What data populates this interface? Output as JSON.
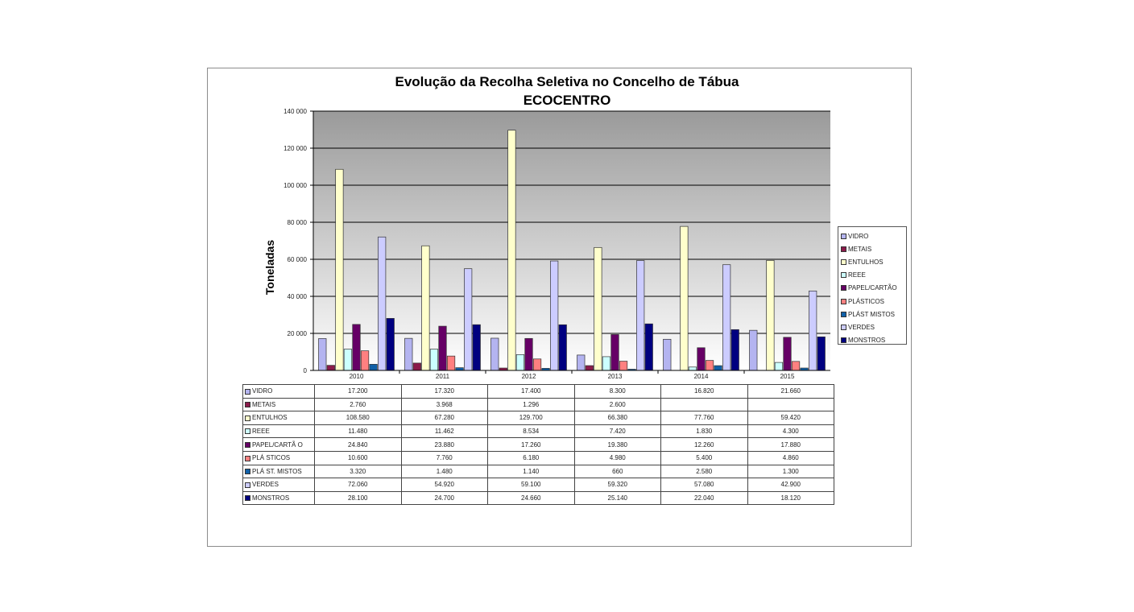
{
  "chart_data": {
    "type": "bar",
    "title": "Evolução da Recolha Seletiva no Concelho de Tábua",
    "subtitle": "ECOCENTRO",
    "ylabel": "Toneladas",
    "xlabel": "",
    "ylim": [
      0,
      140000
    ],
    "yticks": [
      0,
      20000,
      40000,
      60000,
      80000,
      100000,
      120000,
      140000
    ],
    "ytick_labels": [
      "0",
      "20 000",
      "40 000",
      "60 000",
      "80 000",
      "100 000",
      "120 000",
      "140 000"
    ],
    "grid": true,
    "legend_position": "right",
    "categories": [
      "2010",
      "2011",
      "2012",
      "2013",
      "2014",
      "2015"
    ],
    "series": [
      {
        "name": "VIDRO",
        "color": "#b4b4f0",
        "values": [
          17200,
          17320,
          17400,
          8300,
          16820,
          21660
        ],
        "labels": [
          "17.200",
          "17.320",
          "17.400",
          "8.300",
          "16.820",
          "21.660"
        ]
      },
      {
        "name": "METAIS",
        "color": "#8b1a4b",
        "values": [
          2760,
          3968,
          1296,
          2600,
          0,
          0
        ],
        "labels": [
          "2.760",
          "3.968",
          "1.296",
          "2.600",
          "",
          ""
        ]
      },
      {
        "name": "ENTULHOS",
        "color": "#ffffcc",
        "values": [
          108580,
          67280,
          129700,
          66380,
          77760,
          59420
        ],
        "labels": [
          "108.580",
          "67.280",
          "129.700",
          "66.380",
          "77.760",
          "59.420"
        ]
      },
      {
        "name": "REEE",
        "color": "#ccffff",
        "values": [
          11480,
          11462,
          8534,
          7420,
          1830,
          4300
        ],
        "labels": [
          "11.480",
          "11.462",
          "8.534",
          "7.420",
          "1.830",
          "4.300"
        ]
      },
      {
        "name": "PAPEL/CARTÃO",
        "color": "#660066",
        "values": [
          24840,
          23880,
          17260,
          19380,
          12260,
          17880
        ],
        "labels": [
          "24.840",
          "23.880",
          "17.260",
          "19.380",
          "12.260",
          "17.880"
        ]
      },
      {
        "name": "PLÁSTICOS",
        "color": "#ff8080",
        "values": [
          10600,
          7760,
          6180,
          4980,
          5400,
          4860
        ],
        "labels": [
          "10.600",
          "7.760",
          "6.180",
          "4.980",
          "5.400",
          "4.860"
        ]
      },
      {
        "name": "PLÁST MISTOS",
        "color": "#1060a8",
        "values": [
          3320,
          1480,
          1140,
          660,
          2580,
          1300
        ],
        "labels": [
          "3.320",
          "1.480",
          "1.140",
          "660",
          "2.580",
          "1.300"
        ]
      },
      {
        "name": "VERDES",
        "color": "#ccccff",
        "values": [
          72060,
          54920,
          59100,
          59320,
          57080,
          42900
        ],
        "labels": [
          "72.060",
          "54.920",
          "59.100",
          "59.320",
          "57.080",
          "42.900"
        ]
      },
      {
        "name": "MONSTROS",
        "color": "#000080",
        "values": [
          28100,
          24700,
          24660,
          25140,
          22040,
          18120
        ],
        "labels": [
          "28.100",
          "24.700",
          "24.660",
          "25.140",
          "22.040",
          "18.120"
        ]
      }
    ],
    "table_labels": [
      "VIDRO",
      "METAIS",
      "ENTULHOS",
      "REEE",
      "PAPEL/CARTÃ O",
      "PLÁ STICOS",
      "PLÁ ST. MISTOS",
      "VERDES",
      "MONSTROS"
    ]
  }
}
